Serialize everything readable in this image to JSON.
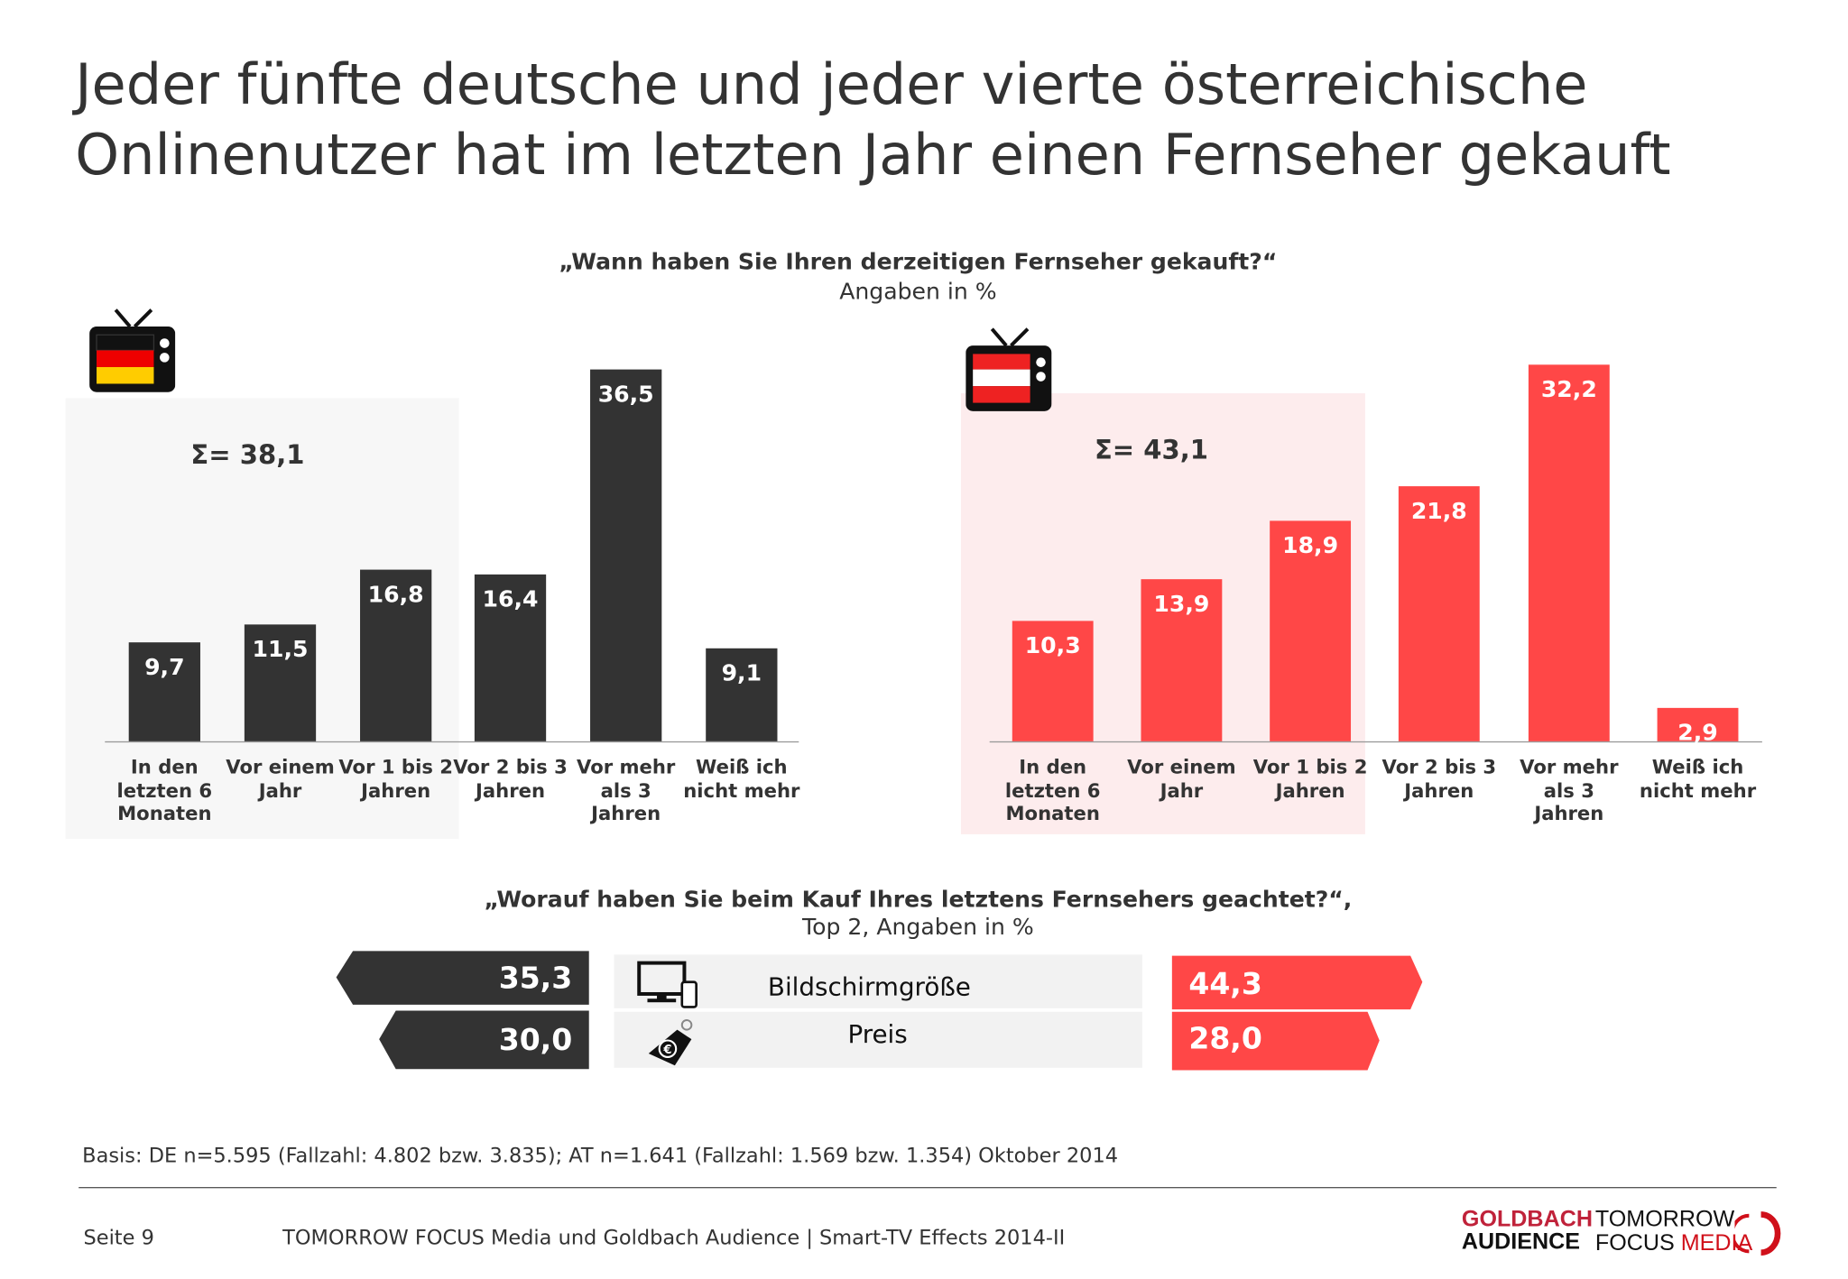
{
  "title_line1": "Jeder fünfte deutsche und jeder vierte österreichische",
  "title_line2": "Onlinenutzer hat im letzten Jahr einen Fernseher gekauft",
  "question1": "„Wann haben Sie Ihren derzeitigen Fernseher gekauft?“",
  "question1_sub": "Angaben in %",
  "question2": "„Worauf haben Sie beim Kauf Ihres letztens Fernsehers geachtet?“,",
  "question2_sub": "Top 2, Angaben in %",
  "colors": {
    "de": "#333333",
    "at": "#ff4747",
    "de_highlight": "#f7f7f7",
    "at_highlight": "#fdeced"
  },
  "chart_data": [
    {
      "type": "bar",
      "country_icon": "tv-germany-flag-icon",
      "sum_label": "Σ= 38,1",
      "categories": [
        "In den letzten 6 Monaten",
        "Vor einem Jahr",
        "Vor 1 bis 2 Jahren",
        "Vor 2 bis 3 Jahren",
        "Vor mehr als 3 Jahren",
        "Weiß ich nicht mehr"
      ],
      "values": [
        9.7,
        11.5,
        16.8,
        16.4,
        36.5,
        9.1
      ],
      "labels": [
        "9,7",
        "11,5",
        "16,8",
        "16,4",
        "36,5",
        "9,1"
      ],
      "color": "#333333"
    },
    {
      "type": "bar",
      "country_icon": "tv-austria-flag-icon",
      "sum_label": "Σ= 43,1",
      "categories": [
        "In den letzten 6 Monaten",
        "Vor einem Jahr",
        "Vor 1 bis 2 Jahren",
        "Vor 2 bis 3 Jahren",
        "Vor mehr als 3 Jahren",
        "Weiß ich nicht mehr"
      ],
      "values": [
        10.3,
        13.9,
        18.9,
        21.8,
        32.2,
        2.9
      ],
      "labels": [
        "10,3",
        "13,9",
        "18,9",
        "21,8",
        "32,2",
        "2,9"
      ],
      "color": "#ff4747"
    },
    {
      "type": "bar",
      "orientation": "horizontal-butterfly",
      "categories": [
        "Bildschirmgröße",
        "Preis"
      ],
      "category_icons": [
        "monitor-phone-icon",
        "euro-price-tag-icon"
      ],
      "series": [
        {
          "country": "DE",
          "values": [
            35.3,
            30.0
          ],
          "labels": [
            "35,3",
            "30,0"
          ],
          "color": "#333333"
        },
        {
          "country": "AT",
          "values": [
            44.3,
            28.0
          ],
          "labels": [
            "44,3",
            "28,0"
          ],
          "color": "#ff4747"
        }
      ]
    }
  ],
  "basis": "Basis: DE n=5.595 (Fallzahl: 4.802 bzw. 3.835); AT n=1.641 (Fallzahl: 1.569 bzw. 1.354) Oktober 2014",
  "footer": {
    "page": "Seite 9",
    "source": "TOMORROW FOCUS Media und Goldbach Audience | Smart-TV Effects 2014-II",
    "logo1": "GOLDBACH AUDIENCE",
    "logo2": "TOMORROW FOCUS MEDIA"
  }
}
